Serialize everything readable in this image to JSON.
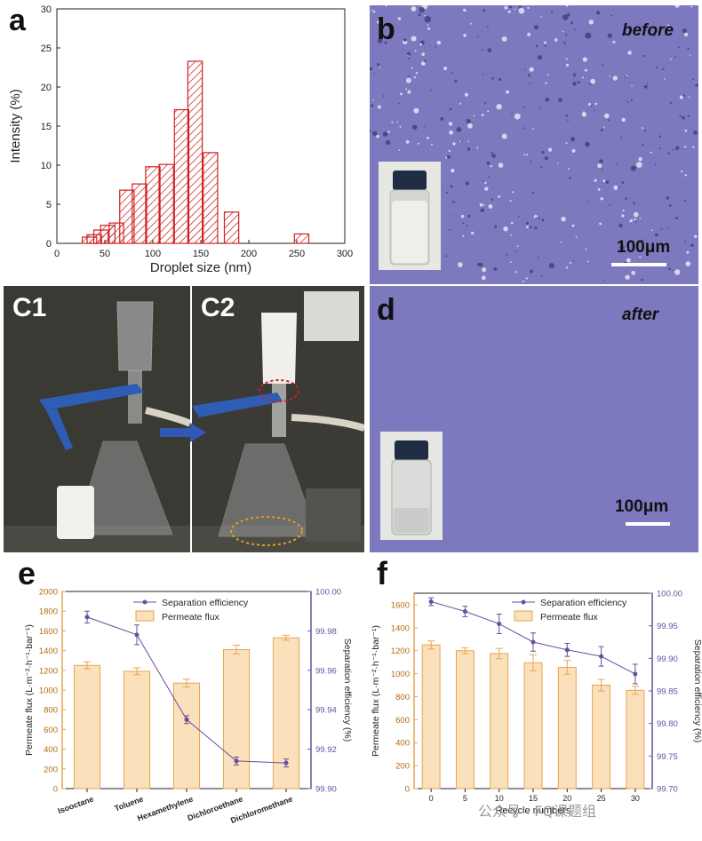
{
  "panel_labels": {
    "a": "a",
    "b": "b",
    "c1": "C1",
    "c2": "C2",
    "d": "d",
    "e": "e",
    "f": "f"
  },
  "micrograph_b": {
    "tag": "before",
    "scale": "100μm"
  },
  "micrograph_d": {
    "tag": "after",
    "scale": "100μm"
  },
  "watermark": "公众号 · FQ课题组",
  "colors": {
    "hatch": "#d02020",
    "bar_fill": "#fbe0bc",
    "bar_stroke": "#e5a552",
    "line": "#6450a0",
    "micro_bg": "#7d79bf"
  },
  "chart_data": [
    {
      "id": "a",
      "type": "bar",
      "xlabel": "Droplet size (nm)",
      "ylabel": "Intensity (%)",
      "xlim": [
        0,
        300
      ],
      "ylim": [
        0,
        30
      ],
      "xticks": [
        0,
        50,
        100,
        150,
        200,
        250,
        300
      ],
      "yticks": [
        0,
        5,
        10,
        15,
        20,
        25,
        30
      ],
      "bar_width": 15,
      "x": [
        34,
        39,
        46,
        53,
        62,
        73,
        86,
        100,
        114,
        130,
        144,
        160,
        182,
        220,
        255
      ],
      "values": [
        0.8,
        1.1,
        1.7,
        2.3,
        2.6,
        6.8,
        7.6,
        9.8,
        10.1,
        17.1,
        23.3,
        11.6,
        4.0,
        0,
        1.2
      ],
      "note_pattern": "hatched"
    },
    {
      "id": "e",
      "type": "bar",
      "categories": [
        "Isooctane",
        "Toluene",
        "Hexamethylene",
        "Dichloroethane",
        "Dichloromethane"
      ],
      "ylabel": "Permeate flux (L·m⁻²·h⁻¹·bar⁻¹)",
      "y2label": "Separation efficiency (%)",
      "ylim": [
        0,
        2000
      ],
      "yticks": [
        0,
        200,
        400,
        600,
        800,
        1000,
        1200,
        1400,
        1600,
        1800,
        2000
      ],
      "y2lim": [
        99.9,
        100.0
      ],
      "y2ticks": [
        "99.90",
        "99.92",
        "99.94",
        "99.96",
        "99.98",
        "100.00"
      ],
      "legend": [
        "Separation efficiency",
        "Permeate flux"
      ],
      "legend_position": "top-center",
      "series": [
        {
          "name": "Permeate flux",
          "kind": "bar",
          "values": [
            1250,
            1190,
            1070,
            1410,
            1530
          ],
          "errors": [
            35,
            35,
            40,
            45,
            25
          ]
        },
        {
          "name": "Separation efficiency",
          "kind": "line",
          "values": [
            99.987,
            99.978,
            99.935,
            99.914,
            99.913
          ],
          "errors": [
            0.003,
            0.005,
            0.002,
            0.002,
            0.002
          ]
        }
      ]
    },
    {
      "id": "f",
      "type": "bar",
      "categories": [
        "0",
        "5",
        "10",
        "15",
        "20",
        "25",
        "30"
      ],
      "xlabel": "Recycle numbers",
      "ylabel": "Permeate flux (L·m⁻²·h⁻¹·bar⁻¹)",
      "y2label": "Separation efficiency (%)",
      "ylim": [
        0,
        1700
      ],
      "yticks": [
        0,
        200,
        400,
        600,
        800,
        1000,
        1200,
        1400,
        1600
      ],
      "y2lim": [
        99.7,
        100.0
      ],
      "y2ticks": [
        "99.70",
        "99.75",
        "99.80",
        "99.85",
        "99.90",
        "99.95",
        "100.00"
      ],
      "legend": [
        "Separation efficiency",
        "Permeate flux"
      ],
      "legend_position": "top-right",
      "series": [
        {
          "name": "Permeate flux",
          "kind": "bar",
          "values": [
            1250,
            1200,
            1175,
            1095,
            1055,
            900,
            855
          ],
          "errors": [
            35,
            25,
            45,
            70,
            60,
            50,
            35
          ]
        },
        {
          "name": "Separation efficiency",
          "kind": "line",
          "values": [
            99.987,
            99.972,
            99.953,
            99.925,
            99.913,
            99.903,
            99.876
          ],
          "errors": [
            0.006,
            0.008,
            0.015,
            0.014,
            0.01,
            0.015,
            0.015
          ]
        }
      ]
    }
  ]
}
